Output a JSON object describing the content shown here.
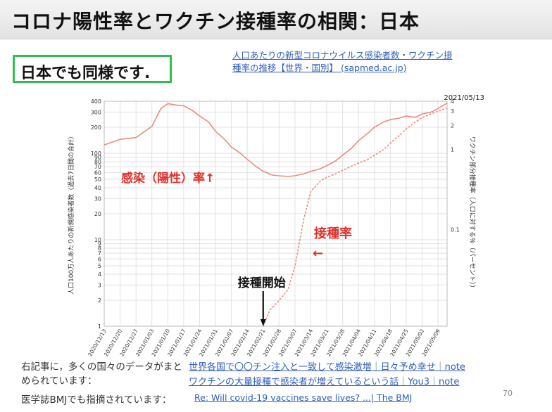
{
  "slide": {
    "title": "コロナ陽性率とワクチン接種率の相関：日本",
    "callout": "日本でも同様です.",
    "source_link": "人口あたりの新型コロナウイルス感染者数・ワクチン接種率の推移【世界・国別】 (sapmed.ac.jp)",
    "note1": "右記事に，多くの国々のデータがまとめられています：",
    "link1": "世界各国で〇〇チン注入と一致して感染激増｜日々予め幸せ｜note",
    "link2": "ワクチンの大量接種で感染者が増えているという話｜You3｜note",
    "note2": "医学誌BMJでも指摘されています：",
    "link3": "Re: Will covid-19 vaccines save lives? ...| The BMJ",
    "page_number": "70",
    "accent_color": "#e0302a",
    "link_color": "#2f5fb8",
    "callout_border_color": "#2fbf4f"
  },
  "chart_data": {
    "type": "line",
    "date_label": "2021/05/13",
    "x_ticks": [
      "2020/12/13",
      "2020/12/20",
      "2020/12/27",
      "2021/01/03",
      "2021/01/10",
      "2021/01/17",
      "2021/01/24",
      "2021/01/31",
      "2021/02/07",
      "2021/02/14",
      "2021/02/21",
      "2021/02/28",
      "2021/03/07",
      "2021/03/14",
      "2021/03/21",
      "2021/03/28",
      "2021/04/04",
      "2021/04/11",
      "2021/04/18",
      "2021/04/25",
      "2021/05/02",
      "2021/05/09"
    ],
    "y_left": {
      "label": "人口100万人あたりの新規感染者数（過去7日間の合計）",
      "scale": "log",
      "range": [
        1,
        400
      ],
      "tick_labels": [
        "400",
        "300",
        "200",
        "100",
        "90",
        "80",
        "70",
        "60",
        "50",
        "40",
        "30",
        "20",
        "10",
        "9",
        "8",
        "7",
        "6",
        "5",
        "4",
        "3",
        "2",
        "1"
      ],
      "tick_values": [
        400,
        300,
        200,
        100,
        90,
        80,
        70,
        60,
        50,
        40,
        30,
        20,
        10,
        9,
        8,
        7,
        6,
        5,
        4,
        3,
        2,
        1
      ]
    },
    "y_right": {
      "label": "ワクチン部分接種率（人口に対する％（パーセント））",
      "scale": "log",
      "range": [
        0.00625,
        4
      ],
      "tick_labels": [
        "4",
        "3",
        "2",
        "1",
        "0.1"
      ],
      "tick_values": [
        4,
        3,
        2,
        1,
        0.1
      ]
    },
    "series": [
      {
        "name": "感染（陽性）率↑",
        "axis": "left",
        "style": "solid",
        "color": "#f08a7a",
        "x": [
          "2020/12/13",
          "2020/12/20",
          "2020/12/27",
          "2021/01/03",
          "2021/01/07",
          "2021/01/10",
          "2021/01/14",
          "2021/01/17",
          "2021/01/21",
          "2021/01/24",
          "2021/01/28",
          "2021/01/31",
          "2021/02/04",
          "2021/02/07",
          "2021/02/11",
          "2021/02/14",
          "2021/02/18",
          "2021/02/21",
          "2021/02/25",
          "2021/02/28",
          "2021/03/04",
          "2021/03/07",
          "2021/03/11",
          "2021/03/14",
          "2021/03/18",
          "2021/03/21",
          "2021/03/25",
          "2021/03/28",
          "2021/04/01",
          "2021/04/04",
          "2021/04/08",
          "2021/04/11",
          "2021/04/15",
          "2021/04/18",
          "2021/04/22",
          "2021/04/25",
          "2021/04/29",
          "2021/05/02",
          "2021/05/06",
          "2021/05/09",
          "2021/05/13"
        ],
        "y": [
          125,
          145,
          152,
          205,
          330,
          375,
          360,
          355,
          310,
          270,
          230,
          180,
          145,
          118,
          100,
          85,
          70,
          62,
          56,
          55,
          54,
          55,
          58,
          62,
          66,
          72,
          82,
          95,
          115,
          140,
          170,
          200,
          230,
          245,
          255,
          270,
          260,
          285,
          300,
          330,
          380
        ]
      },
      {
        "name": "接種率",
        "axis": "right",
        "style": "dashed",
        "color": "#f08a7a",
        "x": [
          "2021/02/21",
          "2021/02/24",
          "2021/02/28",
          "2021/03/04",
          "2021/03/07",
          "2021/03/11",
          "2021/03/14",
          "2021/03/18",
          "2021/03/21",
          "2021/03/25",
          "2021/03/28",
          "2021/04/01",
          "2021/04/04",
          "2021/04/08",
          "2021/04/11",
          "2021/04/15",
          "2021/04/18",
          "2021/04/22",
          "2021/04/25",
          "2021/04/29",
          "2021/05/02",
          "2021/05/06",
          "2021/05/09",
          "2021/05/13"
        ],
        "y": [
          0.00625,
          0.01,
          0.013,
          0.018,
          0.035,
          0.14,
          0.3,
          0.4,
          0.45,
          0.5,
          0.55,
          0.62,
          0.68,
          0.75,
          0.85,
          1.0,
          1.2,
          1.5,
          1.8,
          2.2,
          2.5,
          2.8,
          3.0,
          3.3
        ]
      }
    ],
    "annotations": [
      {
        "text": "感染（陽性）率↑",
        "color": "#e0302a"
      },
      {
        "text": "接種率",
        "color": "#e0302a"
      },
      {
        "text": "←",
        "color": "#e0302a"
      },
      {
        "text": "接種開始",
        "color": "#111111",
        "arrow": "down",
        "x": "2021/02/21"
      }
    ]
  }
}
